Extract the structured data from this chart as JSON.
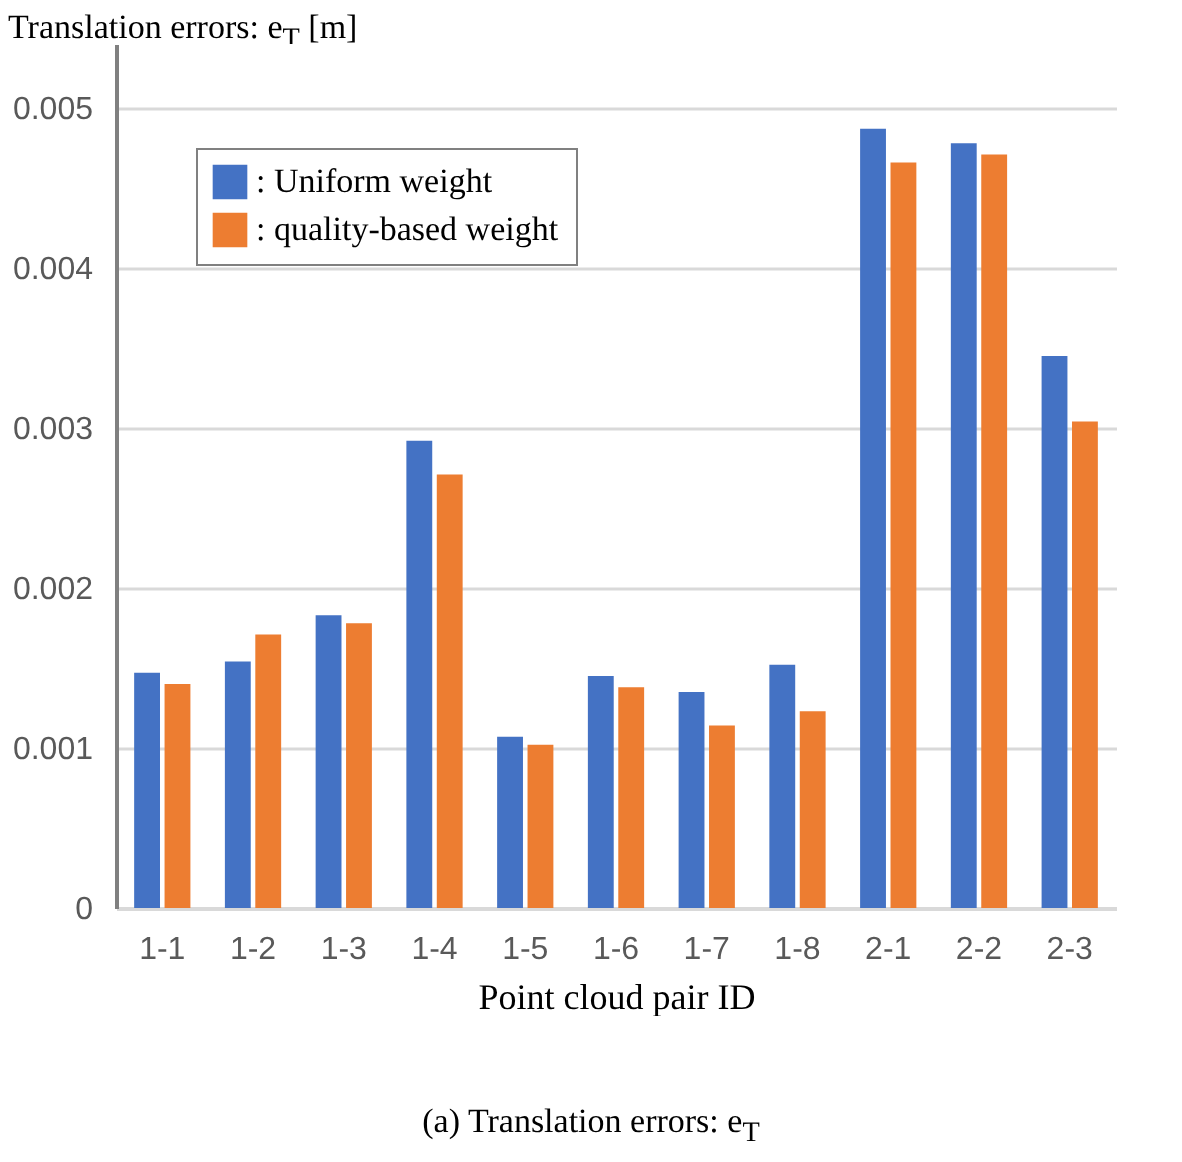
{
  "chart_data": {
    "type": "bar",
    "ylabel": "Translation errors: e$_{T}$ [m]",
    "xlabel": "Point cloud pair ID",
    "annotations": [
      "(a) Translation errors: e$_{T}$"
    ],
    "categories": [
      "1-1",
      "1-2",
      "1-3",
      "1-4",
      "1-5",
      "1-6",
      "1-7",
      "1-8",
      "2-1",
      "2-2",
      "2-3"
    ],
    "series": [
      {
        "name": ": Uniform weight",
        "color": "#4472c4",
        "values": [
          0.00147,
          0.00154,
          0.00183,
          0.00292,
          0.00107,
          0.00145,
          0.00135,
          0.00152,
          0.00487,
          0.00478,
          0.00345
        ]
      },
      {
        "name": ": quality-based weight",
        "color": "#ed7d31",
        "values": [
          0.0014,
          0.00171,
          0.00178,
          0.00271,
          0.00102,
          0.00138,
          0.00114,
          0.00123,
          0.00466,
          0.00471,
          0.00304
        ]
      }
    ],
    "ylim": [
      0,
      0.0054
    ],
    "yticks": [
      0,
      0.001,
      0.002,
      0.003,
      0.004,
      0.005
    ],
    "grid": "y",
    "legend": "top left"
  }
}
